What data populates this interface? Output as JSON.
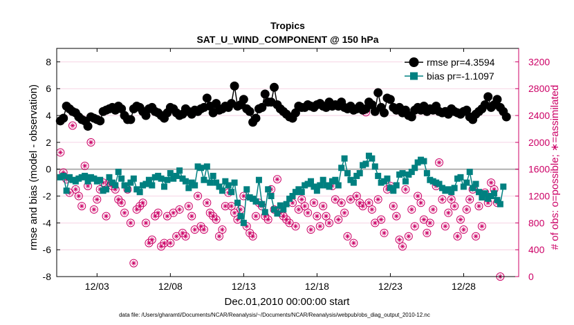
{
  "chart_data": {
    "type": "line",
    "title": "Tropics",
    "subtitle": "SAT_U_WIND_COMPONENT @ 150 hPa",
    "xlabel": "Dec.01,2010 00:00:00 start",
    "ylabel_left": "rmse and bias (model - observation)",
    "ylabel_right": "# of obs: o=possible; ∗=assimilated",
    "footer": "data file: /Users/gharamti/Documents/NCAR/Reanalysis/~/Documents/NCAR/Reanalysis/webpub/obs_diag_output_2010-12.nc",
    "xlim": [
      0.25,
      31.75
    ],
    "ylim_left": [
      -8,
      9
    ],
    "ylim_right": [
      0,
      3400
    ],
    "xticks": [
      {
        "value": 3,
        "label": "12/03"
      },
      {
        "value": 8,
        "label": "12/08"
      },
      {
        "value": 13,
        "label": "12/13"
      },
      {
        "value": 18,
        "label": "12/18"
      },
      {
        "value": 23,
        "label": "12/23"
      },
      {
        "value": 28,
        "label": "12/28"
      }
    ],
    "yticks_left": [
      -8,
      -6,
      -4,
      -2,
      0,
      2,
      4,
      6,
      8
    ],
    "yticks_right": [
      0,
      400,
      800,
      1200,
      1600,
      2000,
      2400,
      2800,
      3200
    ],
    "colors": {
      "rmse": "#000000",
      "bias": "#008080",
      "obs": "#cc0066",
      "zero": "#b0b0b0"
    },
    "legend": [
      {
        "name": "rmse pr=4.3594"
      },
      {
        "name": "bias pr=-1.1097"
      }
    ],
    "series": [
      {
        "name": "rmse",
        "values": [
          3.6,
          3.8,
          4.7,
          4.5,
          4.3,
          4.2,
          3.9,
          3.7,
          3.6,
          3.2,
          3.9,
          3.8,
          3.7,
          3.6,
          4.3,
          4.4,
          4.5,
          4.6,
          4.4,
          4.7,
          4.5,
          4.0,
          3.7,
          3.7,
          4.5,
          4.7,
          4.6,
          4.3,
          4.0,
          4.5,
          4.6,
          4.3,
          4.2,
          4.0,
          3.8,
          4.2,
          4.6,
          4.5,
          4.2,
          4.0,
          4.1,
          4.5,
          4.3,
          4.1,
          4.4,
          4.3,
          4.5,
          4.6,
          5.3,
          4.7,
          4.2,
          4.9,
          4.4,
          4.5,
          4.7,
          4.6,
          4.9,
          6.2,
          4.7,
          4.8,
          5.2,
          4.5,
          4.3,
          3.5,
          3.8,
          4.5,
          4.6,
          5.6,
          5.0,
          5.0,
          6.1,
          4.8,
          4.5,
          4.3,
          4.1,
          3.9,
          3.8,
          4.2,
          4.7,
          4.6,
          4.6,
          4.8,
          4.7,
          4.6,
          4.8,
          4.9,
          4.7,
          4.6,
          5.0,
          4.7,
          4.8,
          4.7,
          5.0,
          4.6,
          4.5,
          4.7,
          4.4,
          4.5,
          4.7,
          4.4,
          4.5,
          5.0,
          4.8,
          4.3,
          5.7,
          4.6,
          4.2,
          5.3,
          5.2,
          4.6,
          4.4,
          4.6,
          4.2,
          4.4,
          4.0,
          3.9,
          4.4,
          4.6,
          4.4,
          4.7,
          4.3,
          4.5,
          4.4,
          4.7,
          4.3,
          4.2,
          4.3,
          4.1,
          4.5,
          4.3,
          4.2,
          4.1,
          4.3,
          4.4,
          3.9,
          3.7,
          4.1,
          4.3,
          4.5,
          4.8,
          5.4,
          4.6,
          4.8,
          5.2,
          4.6,
          4.3,
          3.9
        ]
      },
      {
        "name": "bias",
        "values": [
          -0.6,
          -0.5,
          -1.6,
          -0.6,
          -0.8,
          -0.9,
          -0.7,
          -0.6,
          -0.5,
          -0.9,
          -0.6,
          -0.7,
          -0.9,
          -0.8,
          -1.6,
          -1.5,
          -0.6,
          -1.0,
          -1.2,
          -0.2,
          -0.7,
          -1.2,
          -1.5,
          -1.0,
          -0.7,
          -1.5,
          -1.7,
          -1.2,
          -1.1,
          -0.8,
          -1.2,
          -0.6,
          -0.5,
          -0.7,
          -1.3,
          -0.8,
          -0.3,
          -0.7,
          -0.5,
          -0.1,
          -0.7,
          -0.9,
          -1.4,
          -1.0,
          -1.2,
          0.2,
          0.1,
          -0.8,
          0.2,
          -1.0,
          -0.5,
          -1.0,
          -1.3,
          -1.6,
          -0.9,
          -1.2,
          -1.7,
          -1.0,
          -2.5,
          -3.5,
          -4.0,
          -1.5,
          -2.1,
          -2.2,
          -2.4,
          -0.8,
          -2.6,
          -3.2,
          -1.5,
          -2.0,
          -3.0,
          -3.3,
          -2.7,
          -3.0,
          -2.6,
          -2.2,
          -2.0,
          -1.7,
          -1.5,
          -1.7,
          -1.2,
          -1.1,
          -0.9,
          -1.3,
          -1.6,
          -1.2,
          -0.8,
          -1.2,
          -1.3,
          -0.9,
          -0.8,
          -1.2,
          0.1,
          0.8,
          -0.3,
          -0.8,
          -1.0,
          -0.5,
          -0.3,
          0.3,
          0.4,
          1.0,
          0.8,
          0.2,
          -0.5,
          -1.0,
          -0.9,
          -0.7,
          -1.4,
          -1.6,
          -1.2,
          -0.4,
          -0.3,
          -0.9,
          -0.4,
          -0.2,
          0.1,
          0.5,
          0.7,
          0.6,
          -0.3,
          -0.8,
          -0.9,
          -1.0,
          -1.1,
          -1.4,
          -1.6,
          -1.5,
          -1.7,
          -1.4,
          -0.7,
          -0.6,
          -1.3,
          -1.0,
          -0.2,
          -1.4,
          -1.1,
          -1.7,
          -2.1,
          -1.8,
          -2.2,
          -2.0,
          -1.8,
          -2.3,
          -2.6,
          -1.3
        ]
      },
      {
        "name": "obs_possible",
        "values": [
          1850,
          1550,
          1450,
          1250,
          2250,
          1300,
          1200,
          1050,
          1650,
          1350,
          2000,
          1000,
          1150,
          1300,
          1400,
          900,
          1400,
          1350,
          1300,
          1150,
          1100,
          950,
          1300,
          800,
          200,
          1000,
          1050,
          1100,
          800,
          500,
          550,
          900,
          950,
          450,
          500,
          900,
          500,
          950,
          600,
          1000,
          650,
          600,
          1050,
          900,
          700,
          1200,
          750,
          700,
          1100,
          950,
          900,
          850,
          600,
          700,
          1050,
          1250,
          1050,
          950,
          850,
          1000,
          1200,
          750,
          650,
          600,
          900,
          1100,
          1050,
          900,
          850,
          1300,
          1000,
          1450,
          950,
          900,
          850,
          800,
          1100,
          750,
          1000,
          1150,
          1050,
          950,
          700,
          1100,
          900,
          750,
          1050,
          900,
          800,
          1350,
          1150,
          850,
          1100,
          950,
          600,
          1150,
          500,
          1200,
          1100,
          1050,
          2450,
          1100,
          1000,
          800,
          1150,
          850,
          650,
          1300,
          1350,
          1050,
          900,
          550,
          450,
          1300,
          600,
          1000,
          750,
          1200,
          1100,
          850,
          650,
          800,
          1000,
          1350,
          1700,
          1150,
          750,
          950,
          1150,
          1050,
          600,
          850,
          700,
          1000,
          1150,
          1300,
          600,
          1050,
          750,
          1250,
          1100,
          1400,
          1300,
          1100,
          0
        ]
      }
    ]
  }
}
